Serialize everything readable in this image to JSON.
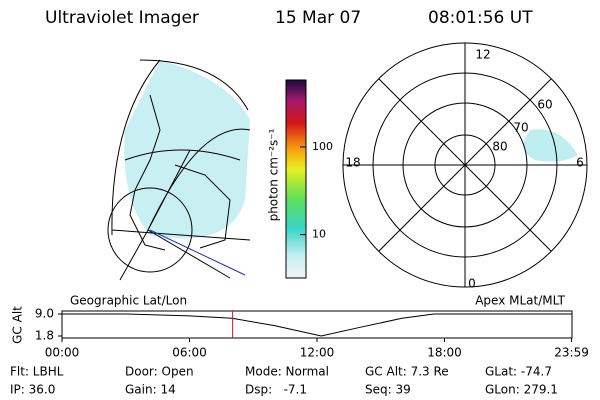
{
  "header": {
    "instrument": "Ultraviolet Imager",
    "date": "15 Mar 07",
    "time": "08:01:56 UT"
  },
  "colorbar": {
    "label": "photon cm⁻²s⁻¹",
    "log": true,
    "ylim": [
      3.2,
      580
    ],
    "yticks": [
      10,
      100
    ]
  },
  "polar": {
    "mlt_labels": [
      "12",
      "18",
      "6",
      "0"
    ],
    "lat_labels": [
      "60",
      "70",
      "80"
    ]
  },
  "timeline": {
    "ylabel": "GC Alt",
    "left_label": "Geographic Lat/Lon",
    "right_label": "Apex MLat/MLT",
    "xlim": [
      0,
      24
    ],
    "ylim": [
      1.8,
      9.0
    ],
    "xticks": [
      {
        "value": 0,
        "label": "00:00"
      },
      {
        "value": 6,
        "label": "06:00"
      },
      {
        "value": 12,
        "label": "12:00"
      },
      {
        "value": 18,
        "label": "18:00"
      },
      {
        "value": 23.98,
        "label": "23:59"
      }
    ],
    "yticks": [
      {
        "value": 9.0,
        "label": "9.0"
      },
      1.8
    ],
    "x": [
      0,
      3,
      6,
      8,
      10,
      12.2,
      14,
      16,
      17.5,
      20,
      24
    ],
    "values": [
      9.0,
      9.0,
      8.4,
      7.6,
      5.2,
      1.8,
      4.6,
      7.6,
      9.0,
      9.0,
      9.0
    ],
    "marker_x": 8.03
  },
  "footer": {
    "rows": [
      [
        "Flt: LBHL",
        "Door: Open",
        "Mode: Normal",
        "GC Alt: 7.3 Re",
        "GLat: -74.7"
      ],
      [
        "IP: 36.0",
        "Gain: 14",
        "Dsp:   -7.1",
        "Seq: 39",
        "GLon: 279.1"
      ]
    ]
  }
}
